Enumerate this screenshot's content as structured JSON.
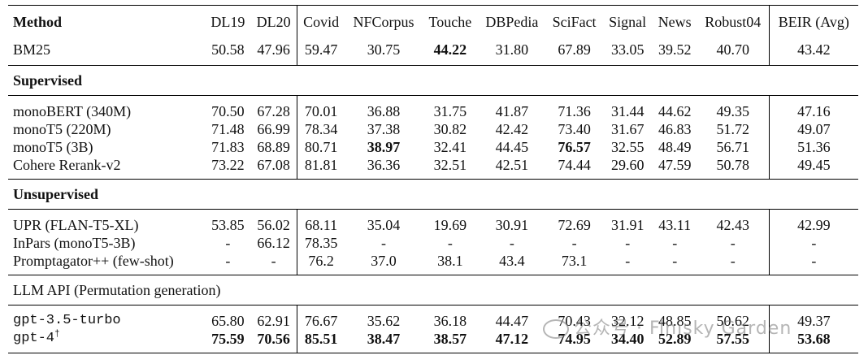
{
  "headers": [
    "Method",
    "DL19",
    "DL20",
    "Covid",
    "NFCorpus",
    "Touche",
    "DBPedia",
    "SciFact",
    "Signal",
    "News",
    "Robust04",
    "BEIR (Avg)"
  ],
  "baseline": {
    "method": "BM25",
    "values": [
      "50.58",
      "47.96",
      "59.47",
      "30.75",
      "44.22",
      "31.80",
      "67.89",
      "33.05",
      "39.52",
      "40.70",
      "43.42"
    ]
  },
  "sections": {
    "supervised": "Supervised",
    "unsupervised": "Unsupervised",
    "llm": "LLM API (Permutation generation)"
  },
  "supervised": [
    {
      "method": "monoBERT (340M)",
      "values": [
        "70.50",
        "67.28",
        "70.01",
        "36.88",
        "31.75",
        "41.87",
        "71.36",
        "31.44",
        "44.62",
        "49.35",
        "47.16"
      ]
    },
    {
      "method": "monoT5 (220M)",
      "values": [
        "71.48",
        "66.99",
        "78.34",
        "37.38",
        "30.82",
        "42.42",
        "73.40",
        "31.67",
        "46.83",
        "51.72",
        "49.07"
      ]
    },
    {
      "method": "monoT5 (3B)",
      "values": [
        "71.83",
        "68.89",
        "80.71",
        "38.97",
        "32.41",
        "44.45",
        "76.57",
        "32.55",
        "48.49",
        "56.71",
        "51.36"
      ]
    },
    {
      "method": "Cohere Rerank-v2",
      "values": [
        "73.22",
        "67.08",
        "81.81",
        "36.36",
        "32.51",
        "42.51",
        "74.44",
        "29.60",
        "47.59",
        "50.78",
        "49.45"
      ]
    }
  ],
  "unsupervised": [
    {
      "method": "UPR (FLAN-T5-XL)",
      "values": [
        "53.85",
        "56.02",
        "68.11",
        "35.04",
        "19.69",
        "30.91",
        "72.69",
        "31.91",
        "43.11",
        "42.43",
        "42.99"
      ]
    },
    {
      "method": "InPars (monoT5-3B)",
      "values": [
        "-",
        "66.12",
        "78.35",
        "-",
        "-",
        "-",
        "-",
        "-",
        "-",
        "-",
        "-"
      ]
    },
    {
      "method": "Promptagator++ (few-shot)",
      "values": [
        "-",
        "-",
        "76.2",
        "37.0",
        "38.1",
        "43.4",
        "73.1",
        "-",
        "-",
        "-",
        "-"
      ]
    }
  ],
  "llm": [
    {
      "method": "gpt-3.5-turbo",
      "values": [
        "65.80",
        "62.91",
        "76.67",
        "35.62",
        "36.18",
        "44.47",
        "70.43",
        "32.12",
        "48.85",
        "50.62",
        "49.37"
      ]
    },
    {
      "method": "gpt-4",
      "sup": "†",
      "values": [
        "75.59",
        "70.56",
        "85.51",
        "38.47",
        "38.57",
        "47.12",
        "74.95",
        "34.40",
        "52.89",
        "57.55",
        "53.68"
      ]
    }
  ],
  "watermark": "公众号 · Finisky Garden"
}
